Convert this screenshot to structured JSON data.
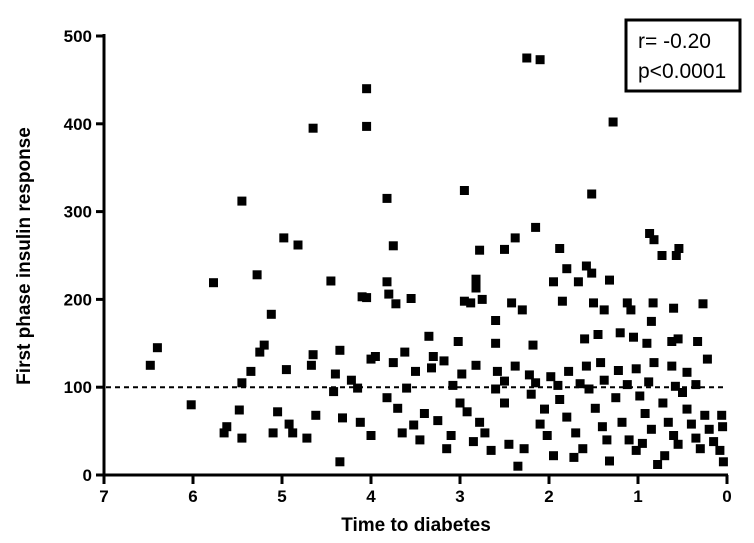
{
  "chart_data": {
    "type": "scatter",
    "title": "",
    "xlabel": "Time to diabetes",
    "ylabel": "First phase insulin response",
    "xlim": [
      7,
      0
    ],
    "x_reversed": true,
    "ylim": [
      0,
      500
    ],
    "x_ticks": [
      "7",
      "6",
      "5",
      "4",
      "3",
      "2",
      "1",
      "0"
    ],
    "y_ticks": [
      "0",
      "100",
      "200",
      "300",
      "400",
      "500"
    ],
    "grid": false,
    "marker": "square",
    "marker_color": "#000000",
    "reference_line": {
      "y": 100,
      "style": "dashed"
    },
    "annotation": {
      "lines": [
        "r= -0.20",
        "p<0.0001"
      ],
      "placement": "top-right"
    },
    "points": [
      [
        2.25,
        475
      ],
      [
        2.1,
        473
      ],
      [
        4.05,
        440
      ],
      [
        4.05,
        397
      ],
      [
        4.65,
        395
      ],
      [
        1.28,
        402
      ],
      [
        2.95,
        324
      ],
      [
        1.52,
        320
      ],
      [
        5.45,
        312
      ],
      [
        3.82,
        315
      ],
      [
        2.15,
        282
      ],
      [
        2.38,
        270
      ],
      [
        4.98,
        270
      ],
      [
        4.82,
        262
      ],
      [
        3.75,
        261
      ],
      [
        0.87,
        275
      ],
      [
        0.82,
        268
      ],
      [
        2.78,
        256
      ],
      [
        2.5,
        257
      ],
      [
        1.88,
        258
      ],
      [
        0.54,
        258
      ],
      [
        0.57,
        250
      ],
      [
        0.73,
        250
      ],
      [
        5.28,
        228
      ],
      [
        5.77,
        219
      ],
      [
        4.45,
        221
      ],
      [
        1.58,
        238
      ],
      [
        1.52,
        230
      ],
      [
        1.8,
        235
      ],
      [
        3.82,
        220
      ],
      [
        2.82,
        223
      ],
      [
        2.82,
        213
      ],
      [
        1.95,
        220
      ],
      [
        1.67,
        220
      ],
      [
        1.32,
        222
      ],
      [
        4.1,
        203
      ],
      [
        4.05,
        202
      ],
      [
        3.8,
        206
      ],
      [
        3.55,
        201
      ],
      [
        3.72,
        195
      ],
      [
        2.95,
        198
      ],
      [
        2.88,
        196
      ],
      [
        2.75,
        200
      ],
      [
        2.42,
        196
      ],
      [
        2.3,
        188
      ],
      [
        1.85,
        198
      ],
      [
        1.5,
        196
      ],
      [
        1.12,
        196
      ],
      [
        0.83,
        196
      ],
      [
        0.27,
        195
      ],
      [
        0.6,
        190
      ],
      [
        5.12,
        183
      ],
      [
        1.38,
        188
      ],
      [
        1.08,
        188
      ],
      [
        0.85,
        175
      ],
      [
        2.6,
        176
      ],
      [
        1.45,
        160
      ],
      [
        1.6,
        155
      ],
      [
        1.2,
        162
      ],
      [
        1.05,
        157
      ],
      [
        0.9,
        150
      ],
      [
        0.62,
        152
      ],
      [
        0.55,
        155
      ],
      [
        0.33,
        152
      ],
      [
        3.35,
        158
      ],
      [
        3.02,
        152
      ],
      [
        2.6,
        150
      ],
      [
        2.18,
        148
      ],
      [
        5.2,
        148
      ],
      [
        5.25,
        140
      ],
      [
        4.65,
        137
      ],
      [
        4.35,
        142
      ],
      [
        3.95,
        135
      ],
      [
        3.62,
        140
      ],
      [
        3.3,
        135
      ],
      [
        6.4,
        145
      ],
      [
        6.48,
        125
      ],
      [
        5.45,
        105
      ],
      [
        5.35,
        118
      ],
      [
        4.95,
        120
      ],
      [
        4.67,
        125
      ],
      [
        4.4,
        115
      ],
      [
        4.22,
        108
      ],
      [
        4.0,
        132
      ],
      [
        3.75,
        128
      ],
      [
        3.5,
        118
      ],
      [
        3.32,
        122
      ],
      [
        3.18,
        130
      ],
      [
        2.98,
        115
      ],
      [
        2.82,
        125
      ],
      [
        2.58,
        118
      ],
      [
        2.38,
        124
      ],
      [
        2.22,
        114
      ],
      [
        1.98,
        112
      ],
      [
        1.78,
        118
      ],
      [
        1.58,
        124
      ],
      [
        1.42,
        128
      ],
      [
        1.22,
        119
      ],
      [
        1.02,
        121
      ],
      [
        0.82,
        128
      ],
      [
        0.62,
        124
      ],
      [
        0.45,
        117
      ],
      [
        0.22,
        132
      ],
      [
        6.02,
        80
      ],
      [
        5.48,
        74
      ],
      [
        5.62,
        55
      ],
      [
        5.65,
        48
      ],
      [
        5.45,
        42
      ],
      [
        5.05,
        72
      ],
      [
        5.1,
        48
      ],
      [
        4.92,
        58
      ],
      [
        4.88,
        48
      ],
      [
        4.72,
        42
      ],
      [
        4.62,
        68
      ],
      [
        4.42,
        95
      ],
      [
        4.32,
        65
      ],
      [
        4.35,
        15
      ],
      [
        4.12,
        60
      ],
      [
        4.0,
        45
      ],
      [
        3.82,
        88
      ],
      [
        3.7,
        76
      ],
      [
        3.52,
        57
      ],
      [
        3.4,
        70
      ],
      [
        3.25,
        62
      ],
      [
        3.1,
        45
      ],
      [
        3.0,
        82
      ],
      [
        2.92,
        72
      ],
      [
        2.78,
        60
      ],
      [
        2.72,
        48
      ],
      [
        2.6,
        98
      ],
      [
        2.5,
        82
      ],
      [
        2.45,
        35
      ],
      [
        2.35,
        10
      ],
      [
        2.2,
        92
      ],
      [
        2.1,
        58
      ],
      [
        2.02,
        45
      ],
      [
        1.95,
        22
      ],
      [
        1.88,
        86
      ],
      [
        1.8,
        66
      ],
      [
        1.7,
        48
      ],
      [
        1.62,
        30
      ],
      [
        1.55,
        98
      ],
      [
        1.48,
        76
      ],
      [
        1.4,
        55
      ],
      [
        1.32,
        16
      ],
      [
        1.25,
        88
      ],
      [
        1.18,
        60
      ],
      [
        1.1,
        40
      ],
      [
        1.02,
        28
      ],
      [
        0.98,
        90
      ],
      [
        0.92,
        70
      ],
      [
        0.85,
        52
      ],
      [
        0.78,
        12
      ],
      [
        0.72,
        82
      ],
      [
        0.66,
        60
      ],
      [
        0.6,
        45
      ],
      [
        0.55,
        35
      ],
      [
        0.5,
        94
      ],
      [
        0.45,
        75
      ],
      [
        0.4,
        58
      ],
      [
        0.35,
        42
      ],
      [
        0.3,
        30
      ],
      [
        0.25,
        68
      ],
      [
        0.2,
        52
      ],
      [
        0.15,
        38
      ],
      [
        0.08,
        28
      ],
      [
        0.04,
        15
      ],
      [
        0.05,
        55
      ],
      [
        0.06,
        68
      ],
      [
        3.65,
        48
      ],
      [
        3.45,
        40
      ],
      [
        3.15,
        30
      ],
      [
        2.85,
        38
      ],
      [
        2.65,
        28
      ],
      [
        2.28,
        30
      ],
      [
        2.05,
        75
      ],
      [
        1.72,
        20
      ],
      [
        1.35,
        40
      ],
      [
        0.95,
        36
      ],
      [
        0.7,
        22
      ],
      [
        2.5,
        107
      ],
      [
        2.15,
        105
      ],
      [
        1.9,
        102
      ],
      [
        1.65,
        104
      ],
      [
        1.38,
        108
      ],
      [
        1.12,
        103
      ],
      [
        0.88,
        106
      ],
      [
        0.58,
        101
      ],
      [
        0.35,
        103
      ],
      [
        3.08,
        102
      ],
      [
        3.6,
        99
      ],
      [
        4.15,
        99
      ]
    ]
  }
}
